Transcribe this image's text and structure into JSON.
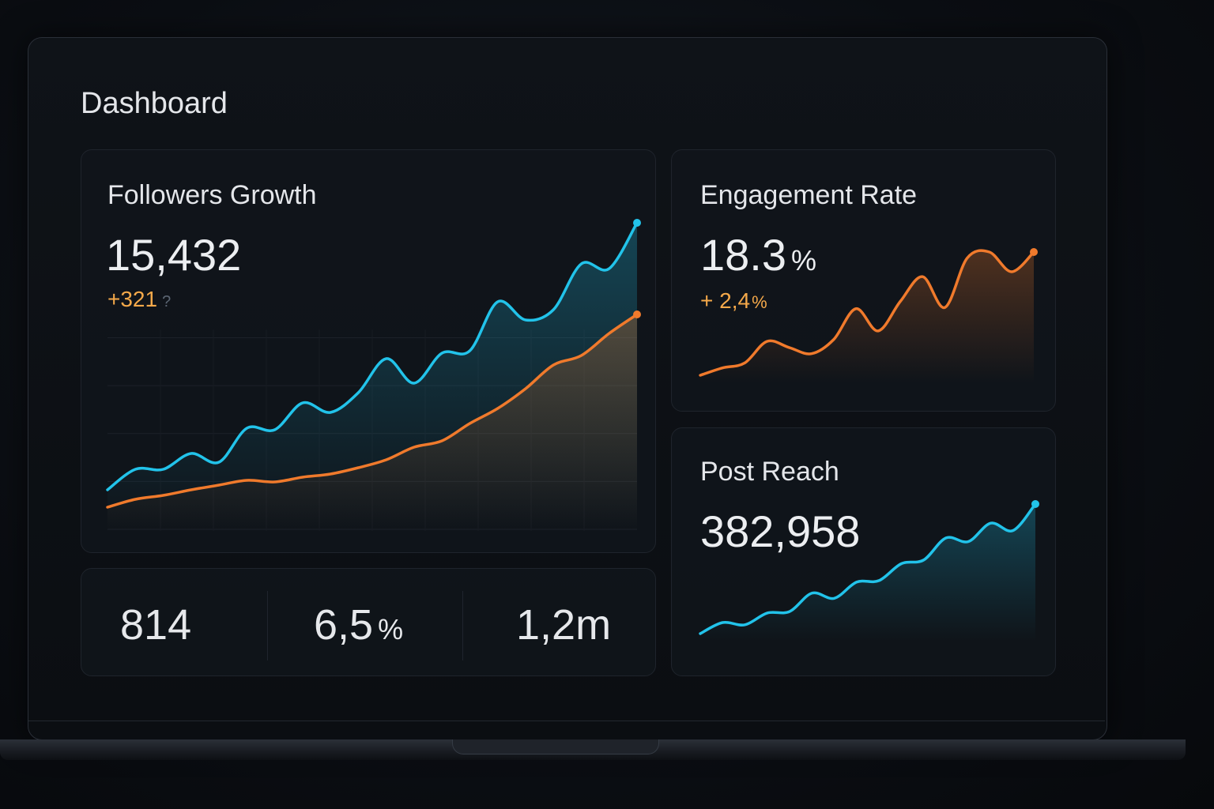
{
  "header": {
    "title": "Dashboard"
  },
  "followers": {
    "title": "Followers Growth",
    "value": "15,432",
    "delta": "+321",
    "delta_icon": "?"
  },
  "engagement": {
    "title": "Engagement Rate",
    "value": "18.3",
    "unit": "%",
    "delta": "+ 2,4",
    "delta_unit": "%"
  },
  "reach": {
    "title": "Post Reach",
    "value": "382,958"
  },
  "stats": [
    {
      "value": "814",
      "unit": ""
    },
    {
      "value": "6,5",
      "unit": "%"
    },
    {
      "value": "1,2m",
      "unit": ""
    }
  ],
  "colors": {
    "cyan": "#22c3ea",
    "orange": "#f07a2c",
    "delta": "#f5a94a"
  },
  "chart_data": [
    {
      "type": "line",
      "chart": "followers-growth",
      "grid": true,
      "series": [
        {
          "color": "#22c3ea",
          "values": [
            42,
            68,
            68,
            88,
            77,
            120,
            118,
            152,
            140,
            165,
            208,
            177,
            215,
            218,
            280,
            257,
            270,
            328,
            322,
            380
          ]
        },
        {
          "color": "#f07a2c",
          "values": [
            20,
            30,
            35,
            42,
            48,
            54,
            52,
            58,
            62,
            70,
            80,
            96,
            104,
            126,
            145,
            170,
            200,
            212,
            240,
            264
          ]
        }
      ]
    },
    {
      "type": "line",
      "chart": "engagement-rate",
      "grid": false,
      "series": [
        {
          "color": "#f07a2c",
          "values": [
            0,
            12,
            20,
            55,
            45,
            35,
            58,
            108,
            72,
            120,
            160,
            110,
            190,
            200,
            168,
            200
          ]
        }
      ]
    },
    {
      "type": "line",
      "chart": "post-reach",
      "grid": false,
      "series": [
        {
          "color": "#22c3ea",
          "values": [
            0,
            15,
            12,
            28,
            30,
            55,
            48,
            70,
            72,
            95,
            100,
            130,
            125,
            150,
            140,
            176
          ]
        }
      ]
    }
  ]
}
